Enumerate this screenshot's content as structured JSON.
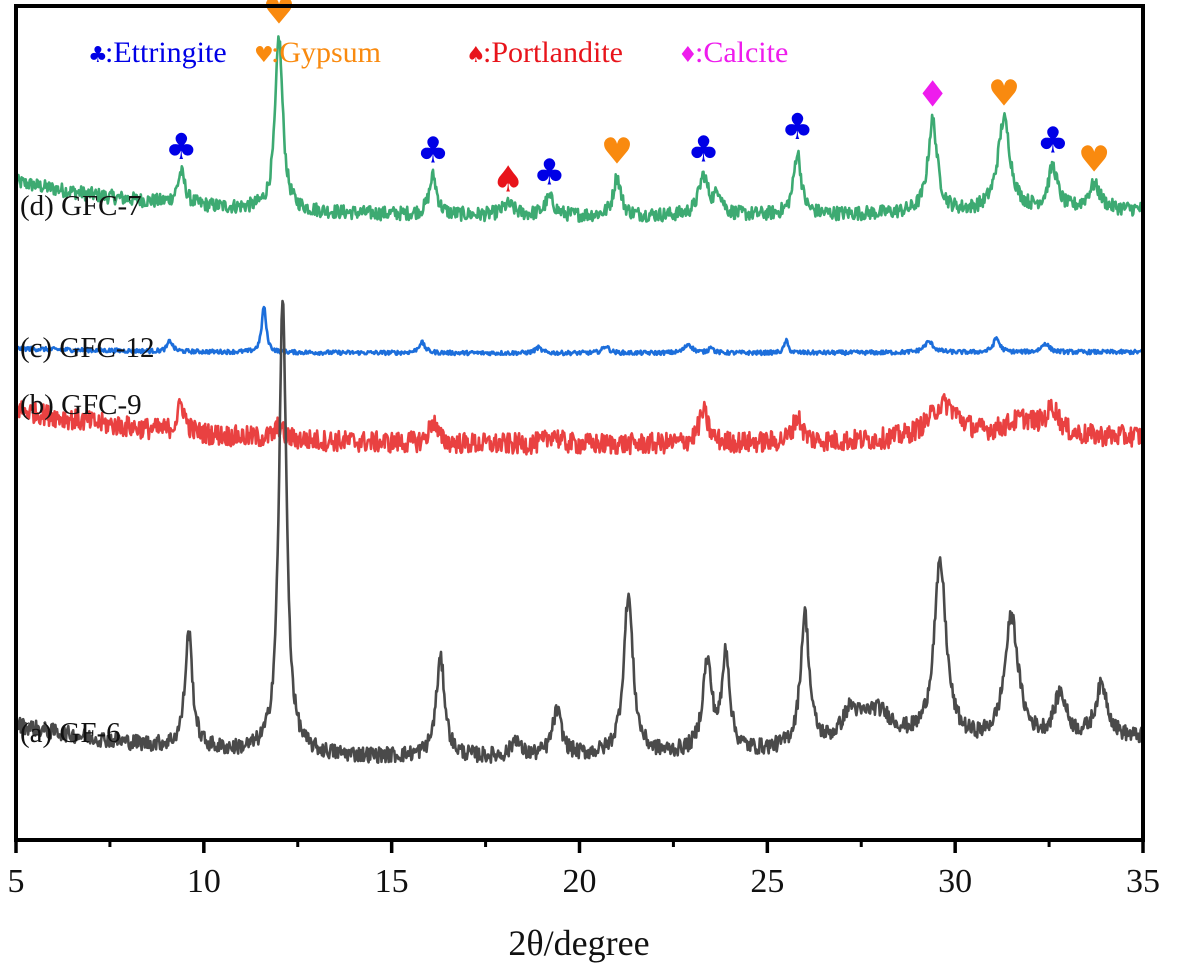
{
  "chart_data": {
    "type": "line",
    "title": "",
    "xlabel": "2θ/degree",
    "ylabel": "",
    "xlim": [
      5,
      35
    ],
    "x_ticks": [
      "5",
      "10",
      "15",
      "20",
      "25",
      "30",
      "35"
    ],
    "x_tick_values": [
      5,
      10,
      15,
      20,
      25,
      30,
      35
    ],
    "x_minor_ticks": [
      7.5,
      12.5,
      17.5,
      22.5,
      27.5,
      32.5
    ],
    "y_axis_visible": false,
    "grid": false,
    "legend": {
      "placement": "top",
      "entries": [
        {
          "symbol": "♣",
          "label": ":Ettringite",
          "color": "#0000e6",
          "phase": "ettringite"
        },
        {
          "symbol": "♥",
          "label": ":Gypsum",
          "color": "#f98a0f",
          "phase": "gypsum"
        },
        {
          "symbol": "♠",
          "label": ":Portlandite",
          "color": "#e8141b",
          "phase": "portlandite"
        },
        {
          "symbol": "♦",
          "label": ":Calcite",
          "color": "#ee1ced",
          "phase": "calcite"
        }
      ]
    },
    "series": [
      {
        "name": "(d) GFC-7",
        "color": "#3daa72",
        "offset": 3.0,
        "baseline": {
          "start": 0.36,
          "mid": 0.14,
          "end": 0.2
        },
        "noise": 0.04,
        "peaks": [
          [
            9.4,
            0.18,
            0.12
          ],
          [
            12.0,
            0.98,
            0.12
          ],
          [
            16.1,
            0.22,
            0.12
          ],
          [
            18.1,
            0.06,
            0.2
          ],
          [
            19.2,
            0.1,
            0.15
          ],
          [
            21.0,
            0.22,
            0.12
          ],
          [
            23.3,
            0.22,
            0.15
          ],
          [
            23.7,
            0.12,
            0.12
          ],
          [
            25.8,
            0.35,
            0.12
          ],
          [
            29.4,
            0.52,
            0.15
          ],
          [
            31.3,
            0.52,
            0.2
          ],
          [
            32.6,
            0.24,
            0.15
          ],
          [
            33.7,
            0.14,
            0.2
          ]
        ]
      },
      {
        "name": "(c) GFC-12",
        "color": "#1c6edb",
        "offset": 2.35,
        "baseline": {
          "start": 0.07,
          "mid": 0.04,
          "end": 0.05
        },
        "noise": 0.012,
        "peaks": [
          [
            9.1,
            0.06,
            0.08
          ],
          [
            11.6,
            0.26,
            0.07
          ],
          [
            15.8,
            0.06,
            0.1
          ],
          [
            18.9,
            0.03,
            0.1
          ],
          [
            20.7,
            0.04,
            0.1
          ],
          [
            22.9,
            0.05,
            0.12
          ],
          [
            23.5,
            0.04,
            0.06
          ],
          [
            25.5,
            0.07,
            0.06
          ],
          [
            29.3,
            0.06,
            0.15
          ],
          [
            31.1,
            0.08,
            0.1
          ],
          [
            32.4,
            0.05,
            0.12
          ]
        ]
      },
      {
        "name": "(b) GFC-9",
        "color": "#e94141",
        "offset": 1.8,
        "baseline": {
          "start": 0.28,
          "mid": 0.05,
          "end": 0.12
        },
        "noise": 0.06,
        "peaks": [
          [
            9.4,
            0.16,
            0.12
          ],
          [
            12.0,
            0.07,
            0.12
          ],
          [
            16.1,
            0.13,
            0.12
          ],
          [
            19.3,
            0.06,
            0.15
          ],
          [
            23.3,
            0.18,
            0.15
          ],
          [
            25.8,
            0.14,
            0.15
          ],
          [
            29.7,
            0.2,
            0.5
          ],
          [
            31.8,
            0.1,
            0.6
          ],
          [
            32.6,
            0.14,
            0.2
          ]
        ]
      },
      {
        "name": "(a) GF-6",
        "color": "#4a4a4a",
        "offset": 0.0,
        "baseline": {
          "start": 0.3,
          "mid": 0.07,
          "end": 0.22
        },
        "noise": 0.045,
        "peaks": [
          [
            9.6,
            0.65,
            0.12
          ],
          [
            12.1,
            2.55,
            0.12
          ],
          [
            16.3,
            0.55,
            0.14
          ],
          [
            18.3,
            0.1,
            0.12
          ],
          [
            19.4,
            0.25,
            0.15
          ],
          [
            21.3,
            0.9,
            0.15
          ],
          [
            23.4,
            0.5,
            0.15
          ],
          [
            23.9,
            0.55,
            0.12
          ],
          [
            26.0,
            0.75,
            0.14
          ],
          [
            27.2,
            0.15,
            0.25
          ],
          [
            27.9,
            0.2,
            0.6
          ],
          [
            29.6,
            1.0,
            0.2
          ],
          [
            31.5,
            0.7,
            0.22
          ],
          [
            32.8,
            0.25,
            0.2
          ],
          [
            33.9,
            0.3,
            0.2
          ]
        ]
      }
    ],
    "annotations": [
      {
        "series": "(d) GFC-7",
        "x": 9.4,
        "phase": "ettringite"
      },
      {
        "series": "(d) GFC-7",
        "x": 12.0,
        "phase": "gypsum"
      },
      {
        "series": "(d) GFC-7",
        "x": 16.1,
        "phase": "ettringite"
      },
      {
        "series": "(d) GFC-7",
        "x": 18.1,
        "phase": "portlandite"
      },
      {
        "series": "(d) GFC-7",
        "x": 19.2,
        "phase": "ettringite"
      },
      {
        "series": "(d) GFC-7",
        "x": 21.0,
        "phase": "gypsum"
      },
      {
        "series": "(d) GFC-7",
        "x": 23.3,
        "phase": "ettringite"
      },
      {
        "series": "(d) GFC-7",
        "x": 25.8,
        "phase": "ettringite"
      },
      {
        "series": "(d) GFC-7",
        "x": 29.4,
        "phase": "calcite"
      },
      {
        "series": "(d) GFC-7",
        "x": 31.3,
        "phase": "gypsum"
      },
      {
        "series": "(d) GFC-7",
        "x": 32.6,
        "phase": "ettringite"
      },
      {
        "series": "(d) GFC-7",
        "x": 33.7,
        "phase": "gypsum"
      }
    ],
    "ylim": [
      -0.35,
      4.35
    ]
  }
}
